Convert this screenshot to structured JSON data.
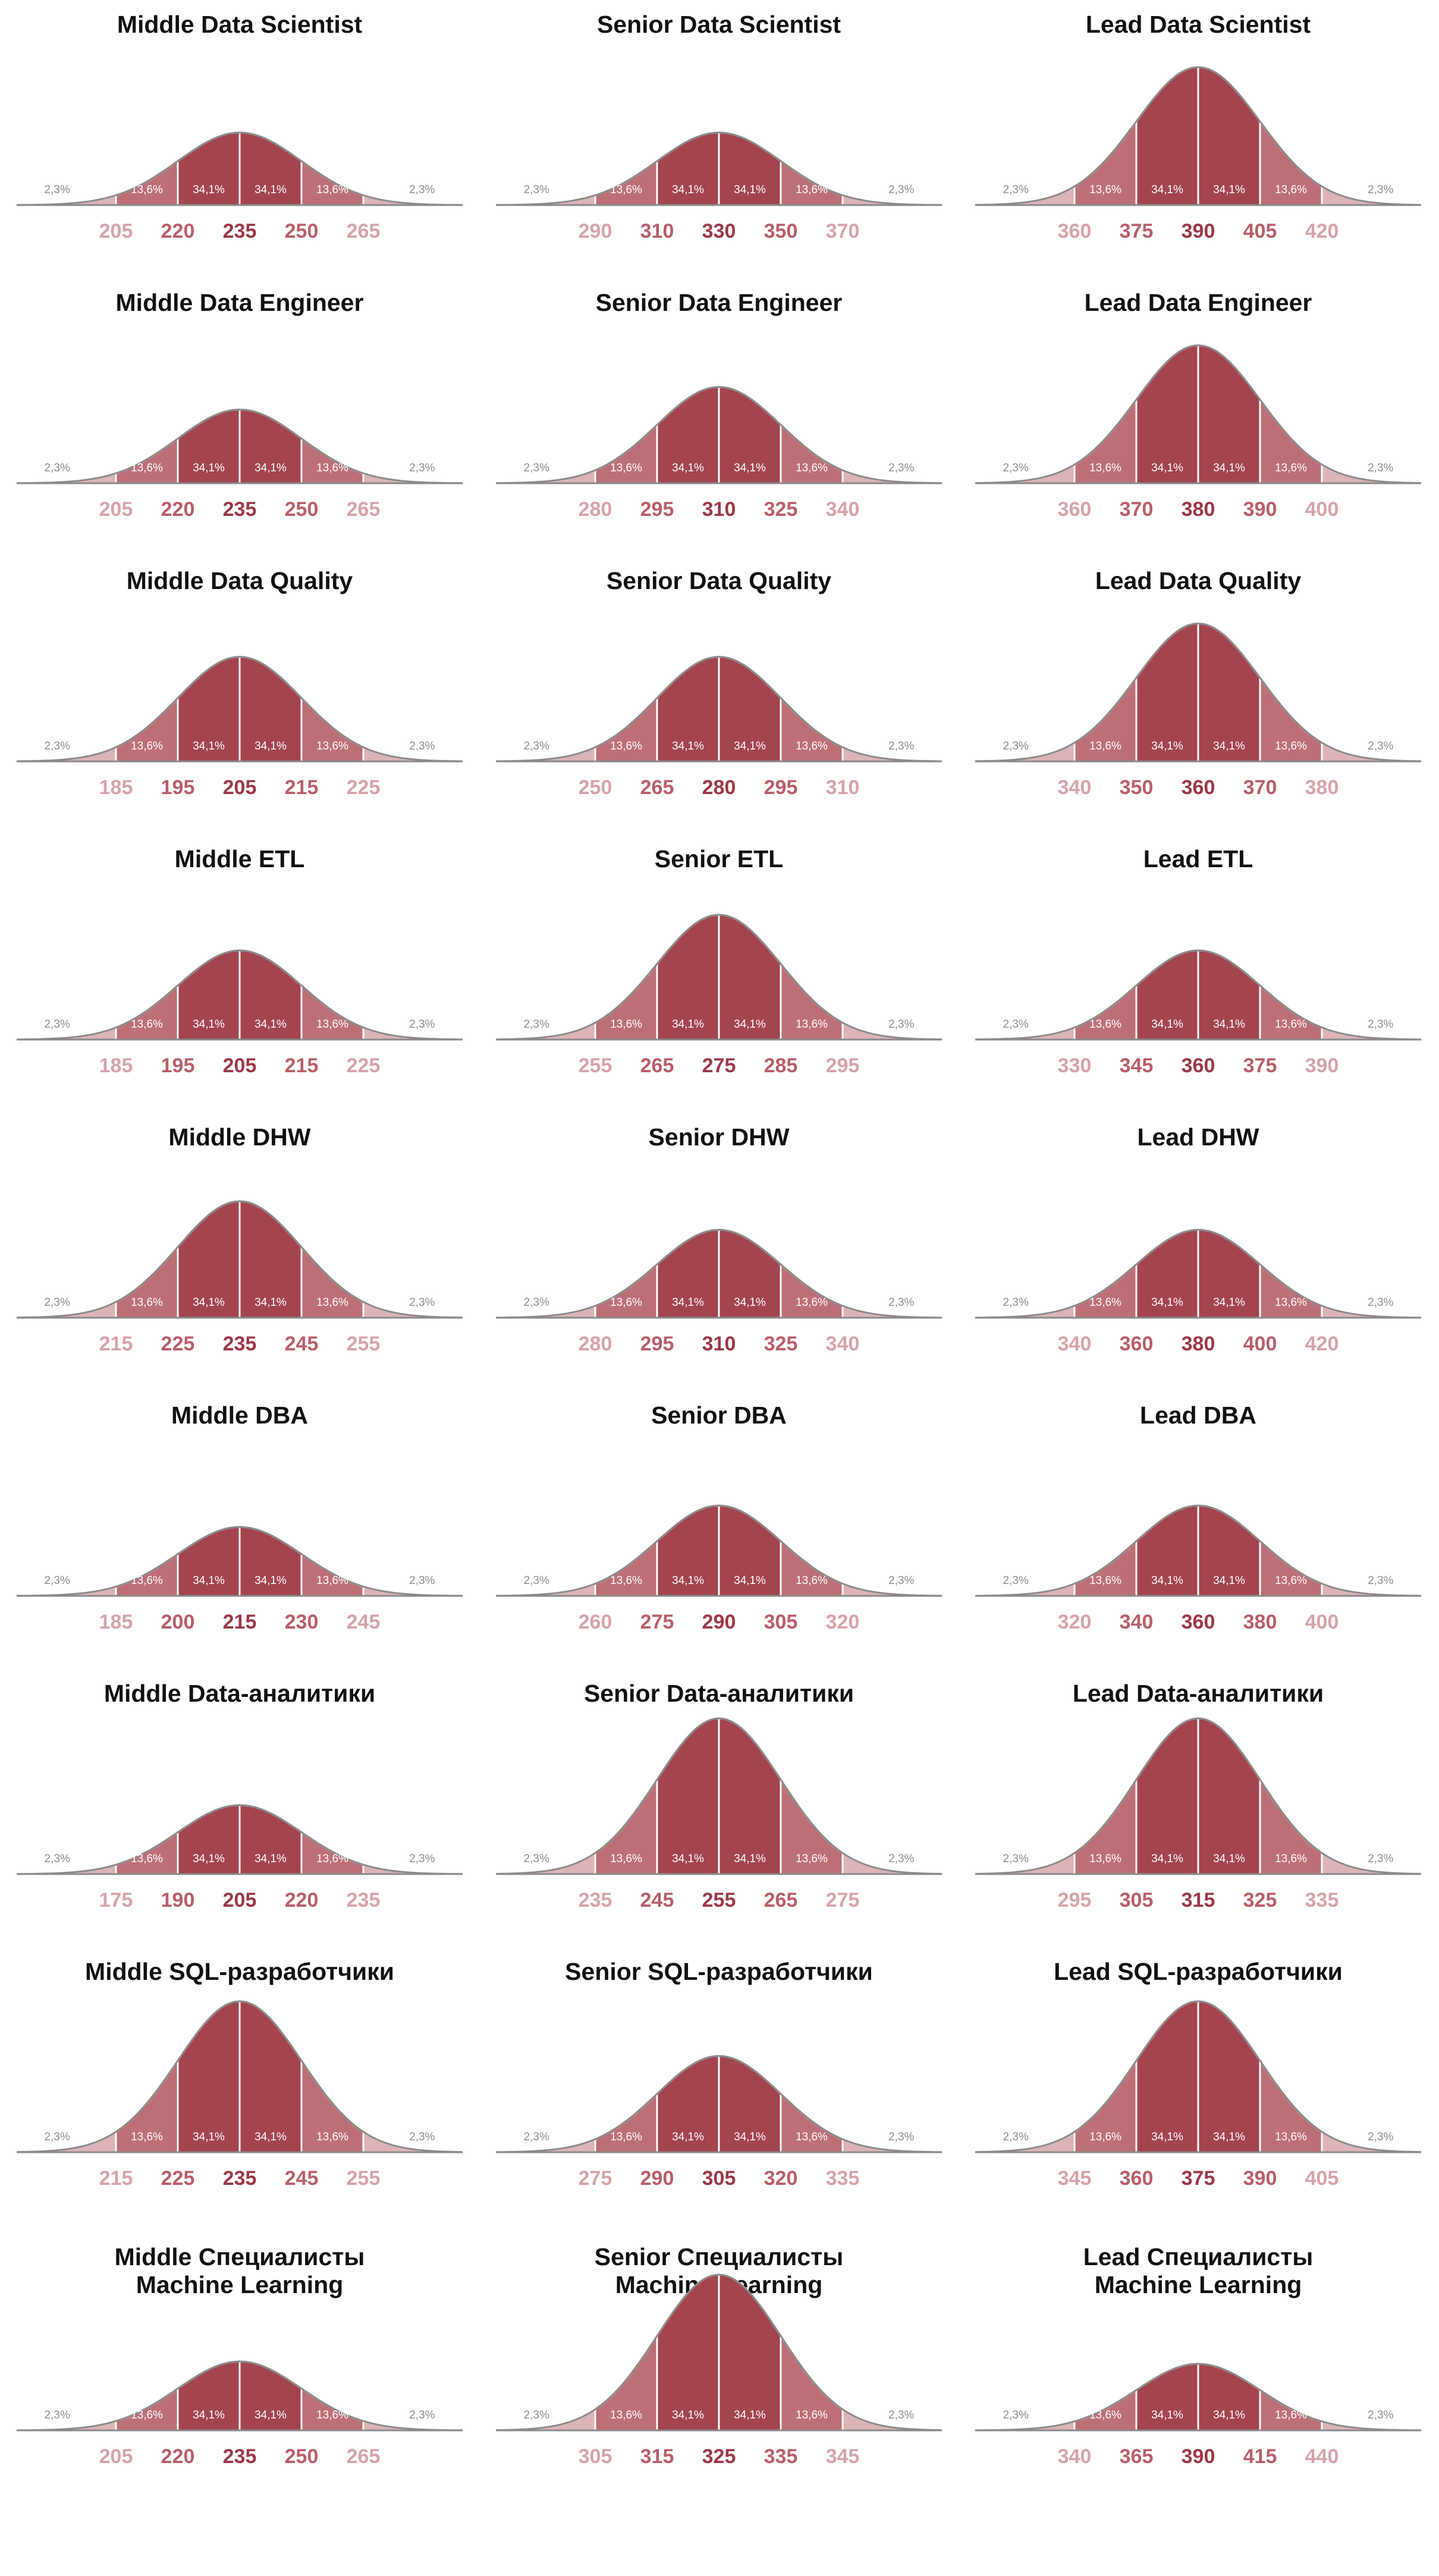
{
  "colors": {
    "center": "#a3444f",
    "mid": "#bd6f77",
    "tail": "#dcb3b7",
    "outline": "#8a8a8a",
    "title": "#111111",
    "label_center": "#9b3848",
    "label_mid": "#b85e6a",
    "label_outer": "#d6a3aa",
    "pct_inner": "#ffffff",
    "pct_tail": "#8d8d8d"
  },
  "percent_labels": [
    "2,3%",
    "13,6%",
    "34,1%",
    "34,1%",
    "13,6%",
    "2,3%"
  ],
  "chart_data": [
    {
      "type": "area",
      "title": "Middle Data Scientist",
      "x": [
        205,
        220,
        235,
        250,
        265
      ],
      "bands": [
        "2,3%",
        "13,6%",
        "34,1%",
        "34,1%",
        "13,6%",
        "2,3%"
      ]
    },
    {
      "type": "area",
      "title": "Senior Data Scientist",
      "x": [
        290,
        310,
        330,
        350,
        370
      ],
      "bands": [
        "2,3%",
        "13,6%",
        "34,1%",
        "34,1%",
        "13,6%",
        "2,3%"
      ]
    },
    {
      "type": "area",
      "title": "Lead Data Scientist",
      "x": [
        360,
        375,
        390,
        405,
        420
      ],
      "bands": [
        "2,3%",
        "13,6%",
        "34,1%",
        "34,1%",
        "13,6%",
        "2,3%"
      ]
    },
    {
      "type": "area",
      "title": "Middle Data Engineer",
      "x": [
        205,
        220,
        235,
        250,
        265
      ],
      "bands": [
        "2,3%",
        "13,6%",
        "34,1%",
        "34,1%",
        "13,6%",
        "2,3%"
      ]
    },
    {
      "type": "area",
      "title": "Senior Data Engineer",
      "x": [
        280,
        295,
        310,
        325,
        340
      ],
      "bands": [
        "2,3%",
        "13,6%",
        "34,1%",
        "34,1%",
        "13,6%",
        "2,3%"
      ]
    },
    {
      "type": "area",
      "title": "Lead Data Engineer",
      "x": [
        360,
        370,
        380,
        390,
        400
      ],
      "bands": [
        "2,3%",
        "13,6%",
        "34,1%",
        "34,1%",
        "13,6%",
        "2,3%"
      ]
    },
    {
      "type": "area",
      "title": "Middle Data Quality",
      "x": [
        185,
        195,
        205,
        215,
        225
      ],
      "bands": [
        "2,3%",
        "13,6%",
        "34,1%",
        "34,1%",
        "13,6%",
        "2,3%"
      ]
    },
    {
      "type": "area",
      "title": "Senior Data Quality",
      "x": [
        250,
        265,
        280,
        295,
        310
      ],
      "bands": [
        "2,3%",
        "13,6%",
        "34,1%",
        "34,1%",
        "13,6%",
        "2,3%"
      ]
    },
    {
      "type": "area",
      "title": "Lead Data Quality",
      "x": [
        340,
        350,
        360,
        370,
        380
      ],
      "bands": [
        "2,3%",
        "13,6%",
        "34,1%",
        "34,1%",
        "13,6%",
        "2,3%"
      ]
    },
    {
      "type": "area",
      "title": "Middle ETL",
      "x": [
        185,
        195,
        205,
        215,
        225
      ],
      "bands": [
        "2,3%",
        "13,6%",
        "34,1%",
        "34,1%",
        "13,6%",
        "2,3%"
      ]
    },
    {
      "type": "area",
      "title": "Senior ETL",
      "x": [
        255,
        265,
        275,
        285,
        295
      ],
      "bands": [
        "2,3%",
        "13,6%",
        "34,1%",
        "34,1%",
        "13,6%",
        "2,3%"
      ]
    },
    {
      "type": "area",
      "title": "Lead ETL",
      "x": [
        330,
        345,
        360,
        375,
        390
      ],
      "bands": [
        "2,3%",
        "13,6%",
        "34,1%",
        "34,1%",
        "13,6%",
        "2,3%"
      ]
    },
    {
      "type": "area",
      "title": "Middle DHW",
      "x": [
        215,
        225,
        235,
        245,
        255
      ],
      "bands": [
        "2,3%",
        "13,6%",
        "34,1%",
        "34,1%",
        "13,6%",
        "2,3%"
      ]
    },
    {
      "type": "area",
      "title": "Senior DHW",
      "x": [
        280,
        295,
        310,
        325,
        340
      ],
      "bands": [
        "2,3%",
        "13,6%",
        "34,1%",
        "34,1%",
        "13,6%",
        "2,3%"
      ]
    },
    {
      "type": "area",
      "title": "Lead DHW",
      "x": [
        340,
        360,
        380,
        400,
        420
      ],
      "bands": [
        "2,3%",
        "13,6%",
        "34,1%",
        "34,1%",
        "13,6%",
        "2,3%"
      ]
    },
    {
      "type": "area",
      "title": "Middle DBA",
      "x": [
        185,
        200,
        215,
        230,
        245
      ],
      "bands": [
        "2,3%",
        "13,6%",
        "34,1%",
        "34,1%",
        "13,6%",
        "2,3%"
      ]
    },
    {
      "type": "area",
      "title": "Senior DBA",
      "x": [
        260,
        275,
        290,
        305,
        320
      ],
      "bands": [
        "2,3%",
        "13,6%",
        "34,1%",
        "34,1%",
        "13,6%",
        "2,3%"
      ]
    },
    {
      "type": "area",
      "title": "Lead DBA",
      "x": [
        320,
        340,
        360,
        380,
        400
      ],
      "bands": [
        "2,3%",
        "13,6%",
        "34,1%",
        "34,1%",
        "13,6%",
        "2,3%"
      ]
    },
    {
      "type": "area",
      "title": "Middle Data-аналитики",
      "x": [
        175,
        190,
        205,
        220,
        235
      ],
      "bands": [
        "2,3%",
        "13,6%",
        "34,1%",
        "34,1%",
        "13,6%",
        "2,3%"
      ]
    },
    {
      "type": "area",
      "title": "Senior Data-аналитики",
      "x": [
        235,
        245,
        255,
        265,
        275
      ],
      "bands": [
        "2,3%",
        "13,6%",
        "34,1%",
        "34,1%",
        "13,6%",
        "2,3%"
      ]
    },
    {
      "type": "area",
      "title": "Lead Data-аналитики",
      "x": [
        295,
        305,
        315,
        325,
        335
      ],
      "bands": [
        "2,3%",
        "13,6%",
        "34,1%",
        "34,1%",
        "13,6%",
        "2,3%"
      ]
    },
    {
      "type": "area",
      "title": "Middle SQL-разработчики",
      "x": [
        215,
        225,
        235,
        245,
        255
      ],
      "bands": [
        "2,3%",
        "13,6%",
        "34,1%",
        "34,1%",
        "13,6%",
        "2,3%"
      ]
    },
    {
      "type": "area",
      "title": "Senior SQL-разработчики",
      "x": [
        275,
        290,
        305,
        320,
        335
      ],
      "bands": [
        "2,3%",
        "13,6%",
        "34,1%",
        "34,1%",
        "13,6%",
        "2,3%"
      ]
    },
    {
      "type": "area",
      "title": "Lead SQL-разработчики",
      "x": [
        345,
        360,
        375,
        390,
        405
      ],
      "bands": [
        "2,3%",
        "13,6%",
        "34,1%",
        "34,1%",
        "13,6%",
        "2,3%"
      ]
    },
    {
      "type": "area",
      "title": "Middle Специалисты\nMachine Learning",
      "x": [
        205,
        220,
        235,
        250,
        265
      ],
      "bands": [
        "2,3%",
        "13,6%",
        "34,1%",
        "34,1%",
        "13,6%",
        "2,3%"
      ]
    },
    {
      "type": "area",
      "title": "Senior Специалисты\nMachine Learning",
      "x": [
        305,
        315,
        325,
        335,
        345
      ],
      "bands": [
        "2,3%",
        "13,6%",
        "34,1%",
        "34,1%",
        "13,6%",
        "2,3%"
      ]
    },
    {
      "type": "area",
      "title": "Lead Специалисты\nMachine Learning",
      "x": [
        340,
        365,
        390,
        415,
        440
      ],
      "bands": [
        "2,3%",
        "13,6%",
        "34,1%",
        "34,1%",
        "13,6%",
        "2,3%"
      ]
    }
  ]
}
